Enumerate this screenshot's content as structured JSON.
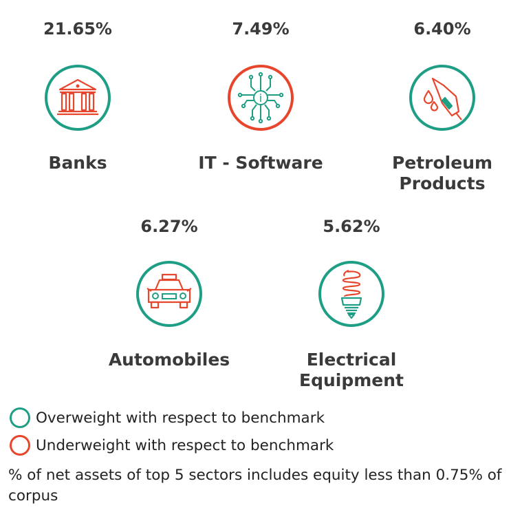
{
  "colors": {
    "overweight": "#1e9e84",
    "underweight": "#e8462c",
    "text": "#3a3a3a"
  },
  "sectors": [
    {
      "pct": "21.65%",
      "name": "Banks",
      "weight": "overweight",
      "icon": "bank-icon"
    },
    {
      "pct": "7.49%",
      "name": "IT - Software",
      "weight": "underweight",
      "icon": "chip-icon"
    },
    {
      "pct": "6.40%",
      "name": "Petroleum\nProducts",
      "weight": "overweight",
      "icon": "fuel-nozzle-icon"
    },
    {
      "pct": "6.27%",
      "name": "Automobiles",
      "weight": "overweight",
      "icon": "car-icon"
    },
    {
      "pct": "5.62%",
      "name": "Electrical\nEquipment",
      "weight": "overweight",
      "icon": "bulb-icon"
    }
  ],
  "legend": {
    "overweight": "Overweight with respect to benchmark",
    "underweight": "Underweight with respect to benchmark"
  },
  "note": "% of net assets of top 5 sectors includes equity less than 0.75% of corpus"
}
